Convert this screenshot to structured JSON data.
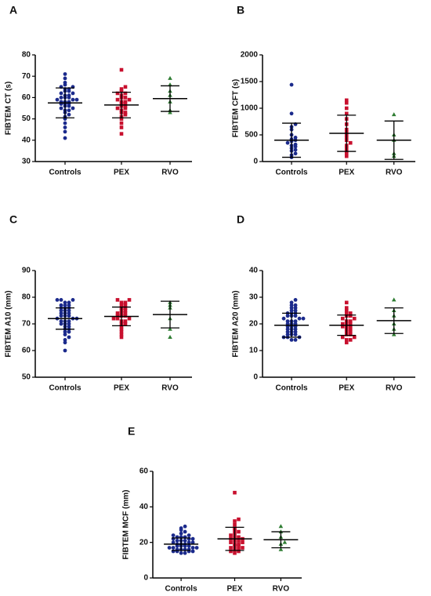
{
  "chart_data": [
    {
      "type": "strip",
      "label": "A",
      "ylabel": "FIBTEM CT (s)",
      "categories": [
        "Controls",
        "PEX",
        "RVO"
      ],
      "colors": [
        "#1b2a8c",
        "#c8102e",
        "#2e7d32"
      ],
      "markers": [
        "circle",
        "square",
        "triangle"
      ],
      "values": [
        [
          41,
          44,
          46,
          48,
          50,
          51,
          52,
          53,
          54,
          54,
          55,
          55,
          56,
          56,
          57,
          57,
          57,
          58,
          58,
          58,
          59,
          59,
          59,
          60,
          60,
          60,
          61,
          61,
          62,
          62,
          63,
          63,
          64,
          64,
          65,
          65,
          66,
          67,
          69,
          71
        ],
        [
          43,
          46,
          48,
          50,
          51,
          52,
          53,
          53,
          54,
          55,
          55,
          56,
          56,
          57,
          57,
          58,
          58,
          59,
          59,
          60,
          60,
          61,
          62,
          62,
          63,
          64,
          65,
          73
        ],
        [
          53,
          54,
          58,
          61,
          63,
          66,
          69
        ]
      ],
      "means": [
        57.5,
        56.5,
        59.5
      ],
      "sds": [
        7,
        6,
        6
      ],
      "ylim": [
        30,
        80
      ],
      "yticks": [
        30,
        40,
        50,
        60,
        70,
        80
      ]
    },
    {
      "type": "strip",
      "label": "B",
      "ylabel": "FIBTEM CFT (s)",
      "categories": [
        "Controls",
        "PEX",
        "RVO"
      ],
      "colors": [
        "#1b2a8c",
        "#c8102e",
        "#2e7d32"
      ],
      "markers": [
        "circle",
        "square",
        "triangle"
      ],
      "values": [
        [
          80,
          120,
          150,
          200,
          220,
          250,
          280,
          300,
          320,
          350,
          380,
          400,
          420,
          450,
          500,
          600,
          650,
          700,
          900,
          1440
        ],
        [
          100,
          150,
          200,
          250,
          300,
          350,
          400,
          450,
          500,
          550,
          600,
          700,
          800,
          900,
          1000,
          1100,
          1150
        ],
        [
          100,
          150,
          400,
          500,
          880
        ]
      ],
      "means": [
        400,
        530,
        400
      ],
      "sds": [
        320,
        340,
        360
      ],
      "ylim": [
        0,
        2000
      ],
      "yticks": [
        0,
        500,
        1000,
        1500,
        2000
      ]
    },
    {
      "type": "strip",
      "label": "C",
      "ylabel": "FIBTEM A10 (mm)",
      "categories": [
        "Controls",
        "PEX",
        "RVO"
      ],
      "colors": [
        "#1b2a8c",
        "#c8102e",
        "#2e7d32"
      ],
      "markers": [
        "circle",
        "square",
        "triangle"
      ],
      "values": [
        [
          60,
          63,
          64,
          65,
          66,
          67,
          67,
          68,
          68,
          69,
          69,
          70,
          70,
          70,
          71,
          71,
          71,
          72,
          72,
          72,
          73,
          73,
          73,
          74,
          74,
          74,
          75,
          75,
          75,
          76,
          76,
          76,
          77,
          77,
          77,
          78,
          78,
          79,
          79,
          79
        ],
        [
          65,
          66,
          67,
          68,
          69,
          70,
          70,
          71,
          71,
          72,
          72,
          72,
          73,
          73,
          73,
          74,
          74,
          74,
          75,
          75,
          76,
          76,
          77,
          77,
          78,
          78,
          79,
          79
        ],
        [
          65,
          68,
          72,
          76,
          77,
          78
        ]
      ],
      "means": [
        72,
        72.8,
        73.5
      ],
      "sds": [
        4,
        3.5,
        5
      ],
      "ylim": [
        50,
        90
      ],
      "yticks": [
        50,
        60,
        70,
        80,
        90
      ]
    },
    {
      "type": "strip",
      "label": "D",
      "ylabel": "FIBTEM A20 (mm)",
      "categories": [
        "Controls",
        "PEX",
        "RVO"
      ],
      "colors": [
        "#1b2a8c",
        "#c8102e",
        "#2e7d32"
      ],
      "markers": [
        "circle",
        "square",
        "triangle"
      ],
      "values": [
        [
          14,
          14,
          15,
          15,
          15,
          16,
          16,
          16,
          17,
          17,
          17,
          18,
          18,
          18,
          19,
          19,
          19,
          20,
          20,
          20,
          21,
          21,
          21,
          22,
          22,
          22,
          23,
          23,
          23,
          24,
          24,
          24,
          25,
          25,
          26,
          26,
          27,
          27,
          28,
          29
        ],
        [
          13,
          14,
          14,
          15,
          15,
          16,
          16,
          17,
          17,
          18,
          18,
          19,
          19,
          19,
          20,
          20,
          20,
          21,
          21,
          22,
          22,
          23,
          23,
          24,
          24,
          25,
          26,
          28
        ],
        [
          16,
          18,
          20,
          23,
          25,
          29
        ]
      ],
      "means": [
        19.5,
        19.5,
        21.2
      ],
      "sds": [
        4.5,
        3.8,
        4.8
      ],
      "ylim": [
        0,
        40
      ],
      "yticks": [
        0,
        10,
        20,
        30,
        40
      ]
    },
    {
      "type": "strip",
      "label": "E",
      "ylabel": "FIBTEM MCF (mm)",
      "categories": [
        "Controls",
        "PEX",
        "RVO"
      ],
      "colors": [
        "#1b2a8c",
        "#c8102e",
        "#2e7d32"
      ],
      "markers": [
        "circle",
        "square",
        "triangle"
      ],
      "values": [
        [
          14,
          14,
          15,
          15,
          15,
          15,
          16,
          16,
          16,
          16,
          17,
          17,
          17,
          17,
          18,
          18,
          18,
          18,
          19,
          19,
          19,
          20,
          20,
          20,
          21,
          21,
          21,
          22,
          22,
          22,
          23,
          23,
          23,
          24,
          24,
          25,
          26,
          27,
          28,
          29
        ],
        [
          14,
          15,
          15,
          16,
          16,
          17,
          17,
          18,
          18,
          19,
          19,
          20,
          20,
          21,
          21,
          22,
          22,
          23,
          23,
          24,
          25,
          26,
          27,
          28,
          30,
          32,
          33,
          48
        ],
        [
          16,
          19,
          20,
          23,
          26,
          29
        ]
      ],
      "means": [
        19,
        22,
        21.5
      ],
      "sds": [
        3.5,
        6.5,
        4.5
      ],
      "ylim": [
        0,
        60
      ],
      "yticks": [
        0,
        20,
        40,
        60
      ]
    }
  ]
}
